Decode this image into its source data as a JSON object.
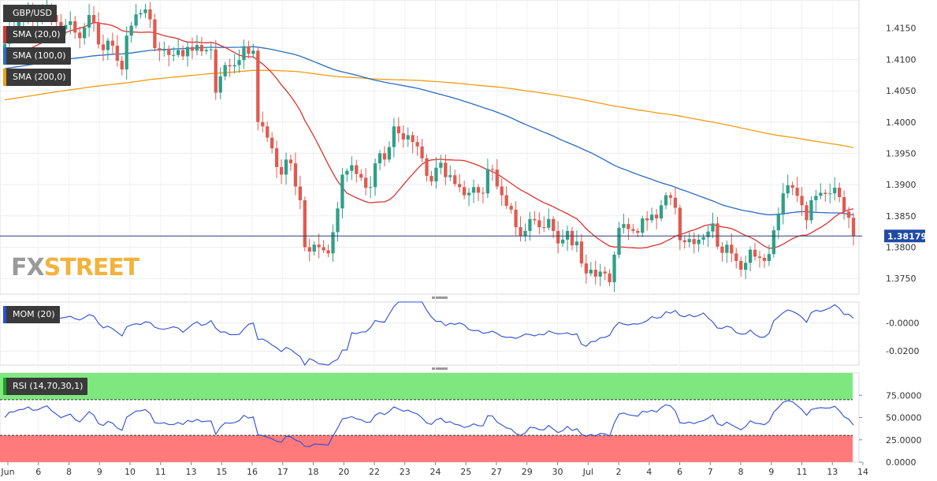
{
  "symbol": "GBP/USD",
  "logo": {
    "fx": "FX",
    "street": "STREET"
  },
  "indicators": [
    {
      "label": "SMA (20,0)",
      "color": "#e0302e"
    },
    {
      "label": "SMA (100,0)",
      "color": "#2a6bc4"
    },
    {
      "label": "SMA (200,0)",
      "color": "#f39c12"
    }
  ],
  "momentum_label": "MOM (20)",
  "rsi_label": "RSI (14,70,30,1)",
  "current_price": "1.38179",
  "colors": {
    "up": "#2f9f88",
    "down": "#e05a50",
    "sma20": "#e0302e",
    "sma100": "#2a6bc4",
    "sma200": "#f39c12",
    "mom": "#2a4ed8",
    "rsi": "#2a4ed8",
    "rsi_high": "#7ee87e",
    "rsi_low": "#ff7b7b"
  },
  "chart_data": [
    {
      "type": "candlestick",
      "title": "GBP/USD",
      "y_ticks": [
        "1.4150",
        "1.4100",
        "1.4050",
        "1.4000",
        "1.3950",
        "1.3900",
        "1.3850",
        "1.3800",
        "1.3750"
      ],
      "ylim": [
        1.3725,
        1.4195
      ],
      "x_tick_labels": [
        "Jun",
        "6",
        "8",
        "9",
        "10",
        "11",
        "13",
        "15",
        "16",
        "17",
        "18",
        "20",
        "22",
        "23",
        "24",
        "25",
        "27",
        "29",
        "30",
        "Jul",
        "2",
        "4",
        "6",
        "7",
        "8",
        "9",
        "11",
        "13",
        "14"
      ],
      "last_price": 1.38179,
      "closes": [
        1.4125,
        1.415,
        1.4152,
        1.4162,
        1.4164,
        1.4176,
        1.4165,
        1.4167,
        1.4177,
        1.4185,
        1.4171,
        1.416,
        1.4148,
        1.4155,
        1.4161,
        1.4143,
        1.4134,
        1.4151,
        1.4171,
        1.4159,
        1.4124,
        1.4115,
        1.413,
        1.4122,
        1.4098,
        1.4084,
        1.4138,
        1.4154,
        1.4172,
        1.4174,
        1.418,
        1.4164,
        1.4118,
        1.4114,
        1.4117,
        1.4107,
        1.4107,
        1.4115,
        1.4105,
        1.412,
        1.4114,
        1.4123,
        1.4113,
        1.4115,
        1.4116,
        1.4047,
        1.4073,
        1.4091,
        1.4089,
        1.4091,
        1.4099,
        1.4121,
        1.4109,
        1.4114,
        1.4,
        1.3993,
        1.3975,
        1.3958,
        1.3928,
        1.3916,
        1.394,
        1.3934,
        1.3897,
        1.3875,
        1.38,
        1.3793,
        1.3804,
        1.38,
        1.3795,
        1.379,
        1.3824,
        1.3862,
        1.3916,
        1.3922,
        1.3931,
        1.3917,
        1.3911,
        1.3895,
        1.3896,
        1.3934,
        1.395,
        1.394,
        1.396,
        1.3993,
        1.3982,
        1.3972,
        1.3979,
        1.3968,
        1.3961,
        1.3942,
        1.3914,
        1.3905,
        1.3927,
        1.3935,
        1.3912,
        1.3915,
        1.3901,
        1.3896,
        1.3883,
        1.3887,
        1.3896,
        1.3887,
        1.3886,
        1.3925,
        1.3924,
        1.3897,
        1.3883,
        1.3866,
        1.386,
        1.3832,
        1.3818,
        1.3826,
        1.3845,
        1.3843,
        1.3832,
        1.3831,
        1.3845,
        1.3826,
        1.3806,
        1.3812,
        1.3826,
        1.3803,
        1.3809,
        1.3774,
        1.3758,
        1.3764,
        1.3753,
        1.3761,
        1.3758,
        1.3744,
        1.3788,
        1.3831,
        1.3837,
        1.3829,
        1.3826,
        1.3823,
        1.3846,
        1.3843,
        1.3852,
        1.3846,
        1.3867,
        1.3883,
        1.3879,
        1.3863,
        1.3811,
        1.3808,
        1.3813,
        1.3805,
        1.3812,
        1.3816,
        1.3825,
        1.3838,
        1.3801,
        1.3791,
        1.3804,
        1.379,
        1.3778,
        1.3764,
        1.3775,
        1.3796,
        1.3785,
        1.3783,
        1.3778,
        1.3789,
        1.3827,
        1.3852,
        1.3886,
        1.3899,
        1.3895,
        1.3882,
        1.3867,
        1.3843,
        1.3875,
        1.3882,
        1.3887,
        1.3885,
        1.3886,
        1.3895,
        1.388,
        1.3857,
        1.3847,
        1.3818
      ],
      "series": [
        {
          "name": "SMA (20,0)"
        },
        {
          "name": "SMA (100,0)"
        },
        {
          "name": "SMA (200,0)"
        }
      ]
    },
    {
      "type": "line",
      "title": "MOM (20)",
      "y_ticks": [
        "-0.0000",
        "-0.0200"
      ],
      "ylim": [
        -0.03,
        0.015
      ]
    },
    {
      "type": "line",
      "title": "RSI (14,70,30,1)",
      "y_ticks": [
        "75.0000",
        "50.0000",
        "25.0000",
        "0.0000"
      ],
      "ylim": [
        0,
        100
      ],
      "overbought": 70,
      "oversold": 30
    }
  ]
}
